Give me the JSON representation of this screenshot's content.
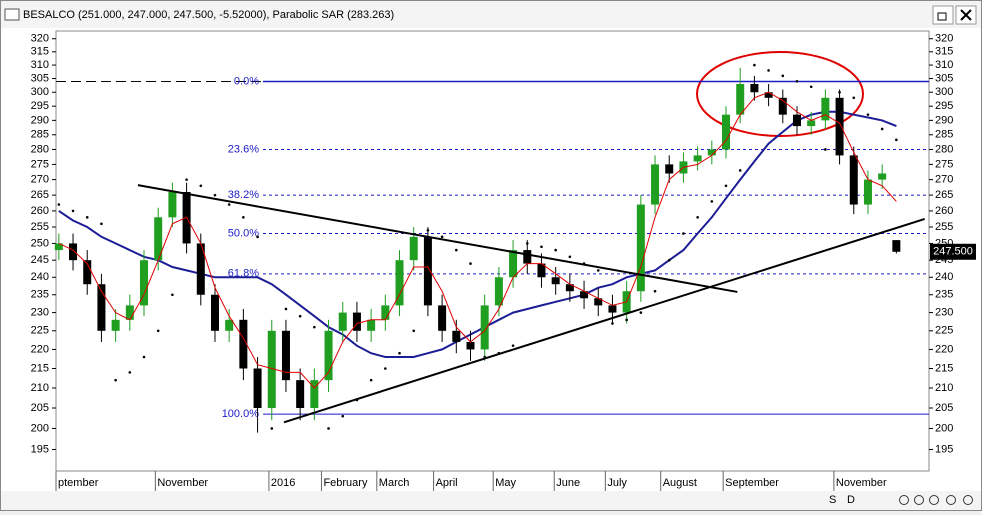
{
  "chart_data": {
    "type": "candlestick",
    "title": "BESALCO (251.000, 247.000, 247.500, -5.52000), Parabolic SAR (283.263)",
    "log_scale": true,
    "ylim": [
      190,
      323
    ],
    "yticks": [
      195,
      200,
      205,
      210,
      215,
      220,
      225,
      230,
      235,
      240,
      245,
      250,
      255,
      260,
      265,
      270,
      275,
      280,
      285,
      290,
      295,
      300,
      305,
      310,
      315,
      320
    ],
    "xlim": [
      -0.2,
      61.3
    ],
    "xticks": [
      {
        "value": -0.2,
        "label": "ptember"
      },
      {
        "value": 6.8,
        "label": "November"
      },
      {
        "value": 14.8,
        "label": "2016"
      },
      {
        "value": 18.5,
        "label": "February"
      },
      {
        "value": 22.4,
        "label": "March"
      },
      {
        "value": 26.4,
        "label": "April"
      },
      {
        "value": 30.6,
        "label": "May"
      },
      {
        "value": 34.9,
        "label": "June"
      },
      {
        "value": 38.5,
        "label": "July"
      },
      {
        "value": 42.4,
        "label": "August"
      },
      {
        "value": 46.8,
        "label": "September"
      },
      {
        "value": 54.6,
        "label": "November"
      }
    ],
    "up_color": "#1f9e1f",
    "down_color": "#000000",
    "open": [
      248,
      250,
      245,
      238,
      225,
      228,
      232,
      245,
      258,
      266,
      250,
      235,
      225,
      228,
      215,
      205,
      225,
      212,
      205,
      212,
      225,
      230,
      225,
      228,
      232,
      245,
      252,
      232,
      225,
      222,
      220,
      232,
      240,
      248,
      244,
      240,
      238,
      236,
      234,
      232,
      230,
      236,
      262,
      275,
      272,
      276,
      278,
      280,
      292,
      303,
      300,
      298,
      292,
      288,
      290,
      298,
      278,
      262,
      270,
      251
    ],
    "high": [
      253,
      253,
      248,
      241,
      231,
      235,
      248,
      261,
      269,
      269,
      253,
      238,
      231,
      231,
      218,
      228,
      228,
      215,
      215,
      228,
      233,
      233,
      231,
      235,
      248,
      255,
      255,
      235,
      228,
      225,
      235,
      243,
      251,
      251,
      247,
      243,
      241,
      239,
      237,
      235,
      239,
      265,
      278,
      278,
      279,
      281,
      283,
      295,
      309,
      306,
      303,
      301,
      295,
      293,
      301,
      301,
      281,
      273,
      275,
      251
    ],
    "low": [
      245,
      242,
      235,
      222,
      222,
      225,
      229,
      242,
      255,
      247,
      232,
      222,
      222,
      212,
      199,
      202,
      209,
      202,
      202,
      209,
      222,
      222,
      222,
      225,
      229,
      242,
      229,
      222,
      219,
      217,
      217,
      229,
      237,
      241,
      237,
      235,
      233,
      231,
      229,
      227,
      227,
      233,
      259,
      269,
      269,
      273,
      275,
      277,
      289,
      297,
      295,
      289,
      285,
      285,
      287,
      275,
      259,
      259,
      267,
      247
    ],
    "close": [
      250,
      245,
      238,
      225,
      228,
      232,
      245,
      258,
      266,
      250,
      235,
      225,
      228,
      215,
      205,
      225,
      212,
      205,
      212,
      225,
      230,
      225,
      228,
      232,
      245,
      252,
      232,
      225,
      222,
      220,
      232,
      240,
      248,
      244,
      240,
      238,
      236,
      234,
      232,
      230,
      236,
      262,
      275,
      272,
      276,
      278,
      280,
      292,
      303,
      300,
      298,
      292,
      288,
      290,
      298,
      278,
      262,
      270,
      272,
      247.5
    ],
    "ma_fast": {
      "color": "#e00000",
      "values": [
        250,
        248,
        244,
        236,
        230,
        228,
        235,
        245,
        256,
        258,
        250,
        237,
        229,
        223,
        216,
        215,
        214,
        214,
        210,
        214,
        222,
        227,
        228,
        228,
        235,
        243,
        243,
        236,
        226,
        222,
        225,
        231,
        240,
        244,
        244,
        241,
        238,
        236,
        234,
        232,
        233,
        243,
        258,
        270,
        274,
        275,
        278,
        283,
        292,
        298,
        300,
        297,
        293,
        290,
        292,
        289,
        279,
        270,
        268,
        263
      ]
    },
    "ma_slow": {
      "color": "#1c1c96",
      "values": [
        260,
        257,
        255,
        252,
        250,
        248,
        246,
        245,
        243,
        242,
        241,
        240,
        240,
        240,
        240,
        238,
        235,
        232,
        229,
        226,
        224,
        221,
        219,
        218,
        218,
        218,
        219,
        220,
        222,
        224,
        226,
        228,
        230,
        231,
        232,
        233,
        234,
        235,
        237,
        238,
        240,
        241,
        242,
        245,
        248,
        253,
        258,
        264,
        270,
        276,
        282,
        286,
        290,
        292,
        293,
        293,
        292,
        291,
        290,
        288
      ]
    },
    "sar": {
      "color": "#000000",
      "values": [
        262,
        260,
        258,
        256,
        212,
        214,
        218,
        225,
        235,
        270,
        268,
        265,
        262,
        258,
        252,
        200,
        231,
        229,
        226,
        200,
        203,
        207,
        212,
        215,
        219,
        225,
        254,
        252,
        248,
        244,
        218,
        219,
        221,
        250,
        249,
        248,
        246,
        244,
        242,
        227,
        228,
        230,
        236,
        245,
        253,
        258,
        263,
        268,
        273,
        310,
        308,
        306,
        304,
        302,
        280,
        300,
        298,
        292,
        287,
        283.263
      ]
    },
    "fib_color": "#1c1cc8",
    "fib_levels": [
      {
        "label": "0.0%",
        "value": 303.9
      },
      {
        "label": "23.6%",
        "value": 280
      },
      {
        "label": "38.2%",
        "value": 265
      },
      {
        "label": "50.0%",
        "value": 253
      },
      {
        "label": "61.8%",
        "value": 241
      },
      {
        "label": "100.0%",
        "value": 203.5
      }
    ],
    "trendlines": [
      {
        "x": [
          5.57,
          47.8
        ],
        "y": [
          268.2,
          235.8
        ]
      },
      {
        "x": [
          15.86,
          61.0
        ],
        "y": [
          201.5,
          257.5
        ]
      }
    ],
    "last_price": {
      "value": 247.5,
      "label": "247.500"
    },
    "toolbar": [
      "S",
      "D"
    ]
  }
}
